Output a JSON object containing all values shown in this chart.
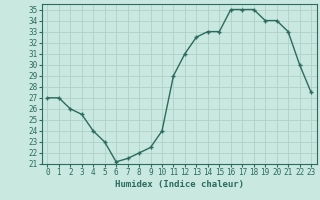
{
  "x": [
    0,
    1,
    2,
    3,
    4,
    5,
    6,
    7,
    8,
    9,
    10,
    11,
    12,
    13,
    14,
    15,
    16,
    17,
    18,
    19,
    20,
    21,
    22,
    23
  ],
  "y": [
    27,
    27,
    26,
    25.5,
    24,
    23,
    21.2,
    21.5,
    22,
    22.5,
    24,
    29,
    31,
    32.5,
    33,
    33,
    35,
    35,
    35,
    34,
    34,
    33,
    30,
    27.5
  ],
  "line_color": "#2d6b5e",
  "marker": "+",
  "bg_color": "#c8e8e0",
  "grid_color": "#b0d0c8",
  "xlabel": "Humidex (Indice chaleur)",
  "xlim": [
    -0.5,
    23.5
  ],
  "ylim": [
    21,
    35.5
  ],
  "yticks": [
    21,
    22,
    23,
    24,
    25,
    26,
    27,
    28,
    29,
    30,
    31,
    32,
    33,
    34,
    35
  ],
  "xticks": [
    0,
    1,
    2,
    3,
    4,
    5,
    6,
    7,
    8,
    9,
    10,
    11,
    12,
    13,
    14,
    15,
    16,
    17,
    18,
    19,
    20,
    21,
    22,
    23
  ],
  "label_fontsize": 6.5,
  "tick_fontsize": 5.5,
  "linewidth": 1.0,
  "markersize": 3.5
}
